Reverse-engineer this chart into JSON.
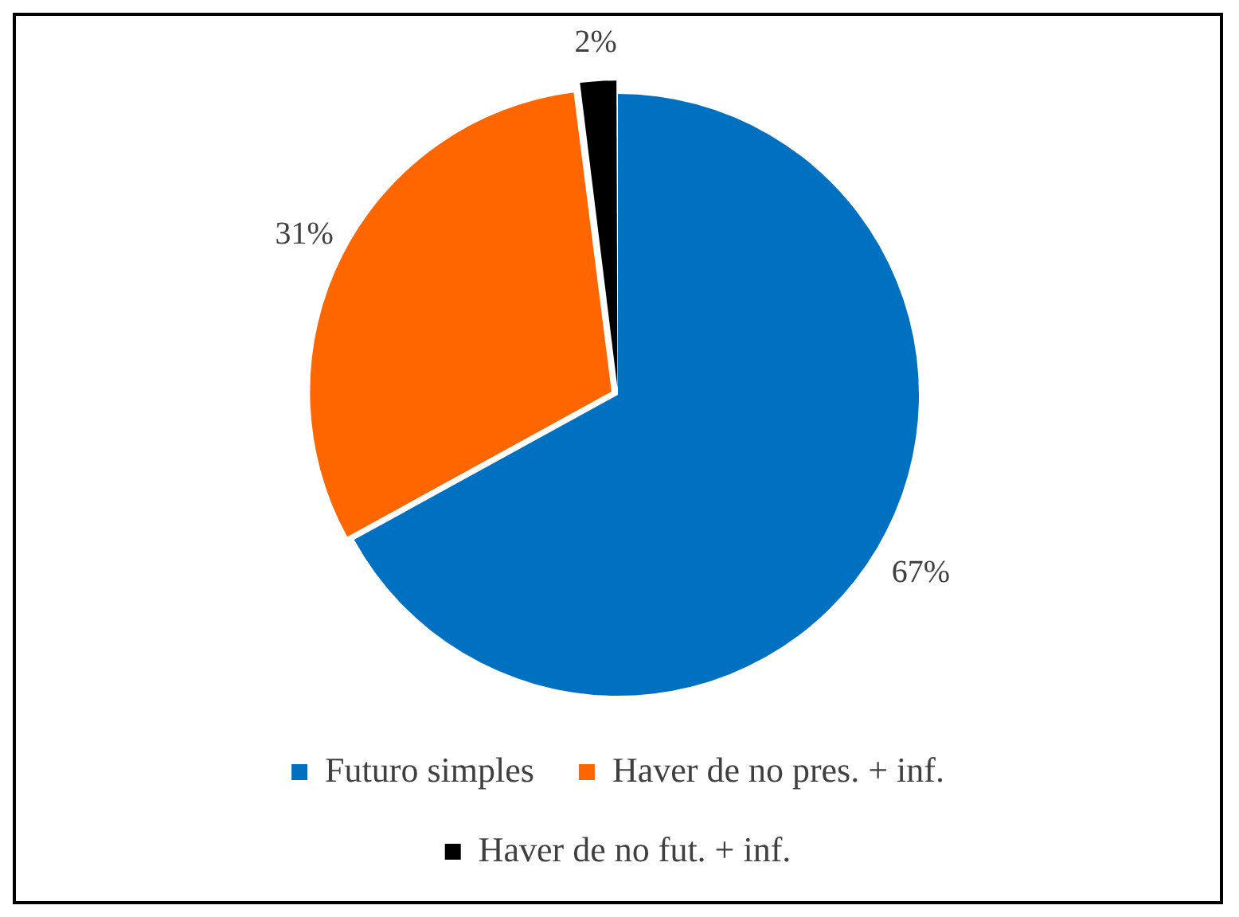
{
  "chart_data": {
    "type": "pie",
    "categories": [
      "Futuro simples",
      "Haver de no pres. + inf.",
      "Haver de no fut. + inf."
    ],
    "values": [
      67,
      31,
      2
    ],
    "colors": [
      "#0070c0",
      "#ff6600",
      "#000000"
    ],
    "value_labels": [
      "67%",
      "31%",
      "2%"
    ],
    "legend": "bottom"
  }
}
